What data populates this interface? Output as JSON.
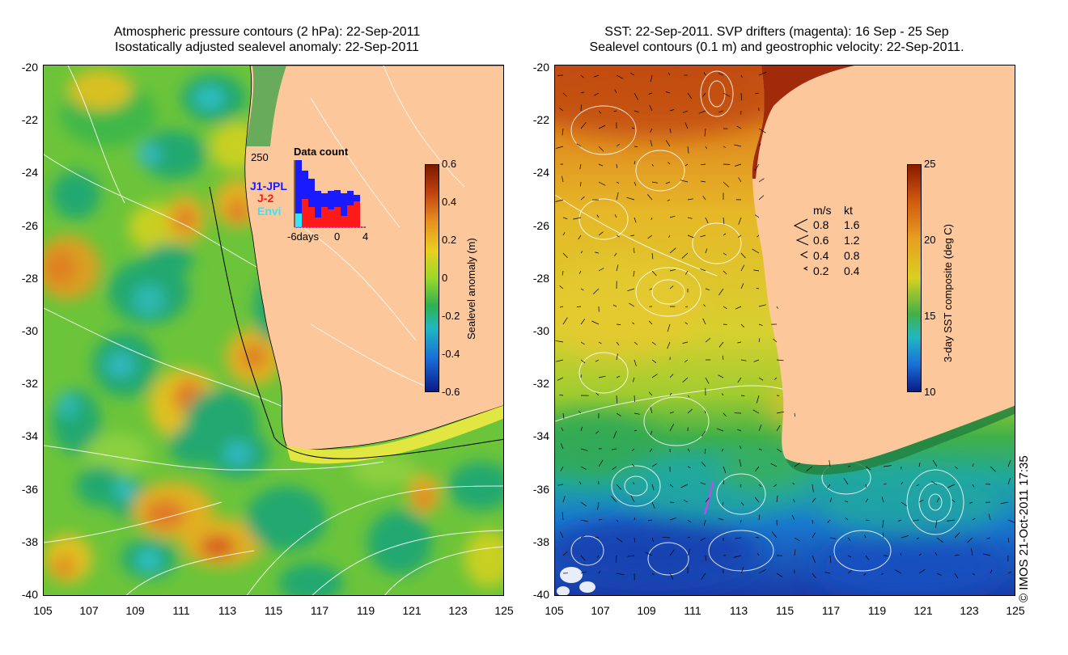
{
  "left_panel": {
    "title_line1": "Atmospheric pressure contours (2 hPa): 22-Sep-2011",
    "title_line2": "Isostatically adjusted sealevel anomaly: 22-Sep-2011",
    "colorbar": {
      "label": "Sealevel anomaly (m)",
      "ticks": [
        "0.6",
        "0.4",
        "0.2",
        "0",
        "-0.2",
        "-0.4",
        "-0.6"
      ],
      "range": [
        -0.6,
        0.6
      ]
    },
    "data_count": {
      "title": "Data count",
      "ymax_label": "250",
      "x_labels": [
        "-6days",
        "0",
        "4"
      ],
      "missions": [
        "J1-JPL",
        "J-2",
        "Envi"
      ],
      "mission_colors": [
        "#1a1aff",
        "#ff1a1a",
        "#33e6ff"
      ]
    }
  },
  "right_panel": {
    "title_line1": "SST: 22-Sep-2011. SVP drifters (magenta): 16 Sep - 25 Sep",
    "title_line2": "Sealevel contours (0.1 m) and geostrophic velocity: 22-Sep-2011.",
    "colorbar": {
      "label": "3-day SST composite (deg C)",
      "ticks": [
        "25",
        "20",
        "15",
        "10"
      ],
      "range": [
        10,
        25
      ]
    },
    "velocity_legend": {
      "header_ms": "m/s",
      "header_kt": "kt",
      "rows": [
        {
          "ms": "0.8",
          "kt": "1.6"
        },
        {
          "ms": "0.6",
          "kt": "1.2"
        },
        {
          "ms": "0.4",
          "kt": "0.8"
        },
        {
          "ms": "0.2",
          "kt": "0.4"
        }
      ]
    }
  },
  "axes": {
    "y_labels": [
      "-20",
      "-22",
      "-24",
      "-26",
      "-28",
      "-30",
      "-32",
      "-34",
      "-36",
      "-38",
      "-40"
    ],
    "x_labels": [
      "105",
      "107",
      "109",
      "111",
      "113",
      "115",
      "117",
      "119",
      "121",
      "123",
      "125"
    ],
    "lon_range": [
      105,
      125
    ],
    "lat_range": [
      -40,
      -20
    ]
  },
  "copyright": "© IMOS 21-Oct-2011 17:35",
  "colors": {
    "land": "#fcc89b",
    "sla_low": "#0a2a9a",
    "sla_zero": "#9ad82a",
    "sla_high": "#8a2a0a",
    "sst_cold": "#1a3aa8",
    "sst_warm": "#d06a10"
  }
}
